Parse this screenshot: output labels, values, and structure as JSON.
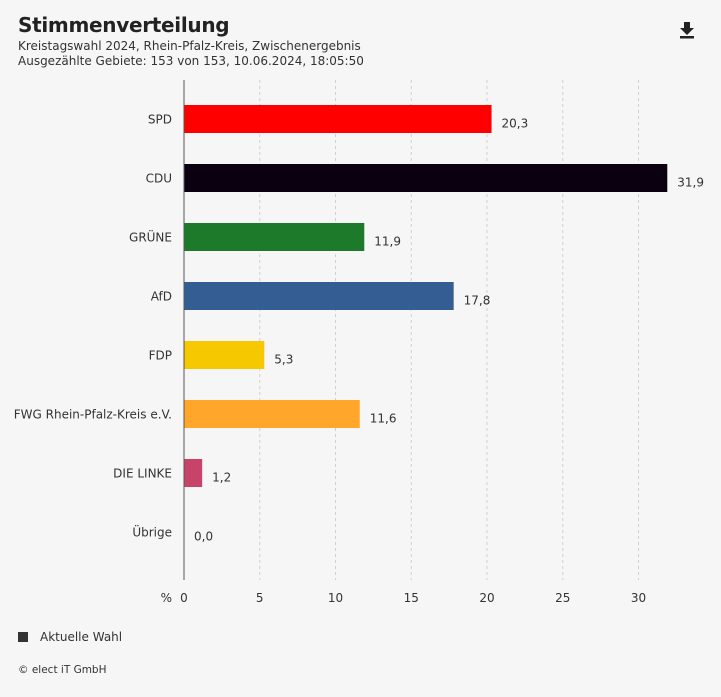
{
  "header": {
    "title": "Stimmenverteilung",
    "subtitle1": "Kreistagswahl 2024, Rhein-Pfalz-Kreis, Zwischenergebnis",
    "subtitle2": "Ausgezählte Gebiete: 153 von 153, 10.06.2024, 18:05:50"
  },
  "icons": {
    "download": "download-icon"
  },
  "legend": {
    "label": "Aktuelle Wahl",
    "color": "#333333"
  },
  "footer": {
    "copyright": "© elect iT GmbH"
  },
  "chart_data": {
    "type": "bar",
    "orientation": "horizontal",
    "categories": [
      "SPD",
      "CDU",
      "GRÜNE",
      "AfD",
      "FDP",
      "FWG Rhein-Pfalz-Kreis e.V.",
      "DIE LINKE",
      "Übrige"
    ],
    "series": [
      {
        "name": "Aktuelle Wahl",
        "values": [
          20.3,
          31.9,
          11.9,
          17.8,
          5.3,
          11.6,
          1.2,
          0.0
        ],
        "labels": [
          "20,3",
          "31,9",
          "11,9",
          "17,8",
          "5,3",
          "11,6",
          "1,2",
          "0,0"
        ],
        "colors": [
          "#ff0000",
          "#0a0010",
          "#1d7a2b",
          "#335d93",
          "#f5c800",
          "#ffa62b",
          "#c8436a",
          "#999999"
        ]
      }
    ],
    "xlabel": "%",
    "xlim": [
      0,
      32
    ],
    "xticks": [
      0,
      5,
      10,
      15,
      20,
      25,
      30
    ],
    "xtick_labels": [
      "0",
      "5",
      "10",
      "15",
      "20",
      "25",
      "30"
    ],
    "grid": true
  }
}
